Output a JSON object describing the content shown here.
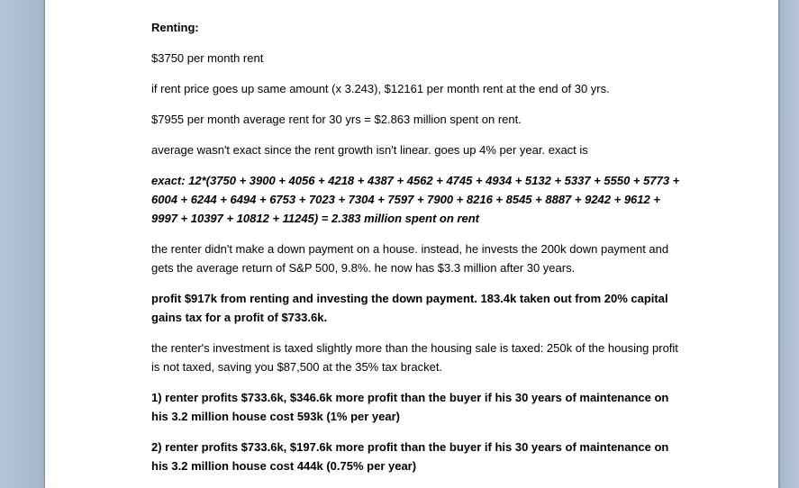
{
  "document": {
    "paragraphs": [
      {
        "style": "bold",
        "text": "Renting:"
      },
      {
        "style": "normal",
        "text": "$3750 per month rent"
      },
      {
        "style": "normal",
        "text": "if rent price goes up same amount (x 3.243), $12161 per month rent at the end of 30 yrs."
      },
      {
        "style": "normal",
        "text": "$7955 per month average rent for 30 yrs = $2.863 million spent on rent."
      },
      {
        "style": "normal",
        "text": "average wasn't exact since the rent growth isn't linear.  goes up 4% per year.  exact is"
      },
      {
        "style": "bold-italic",
        "text": "exact: 12*(3750 + 3900 + 4056 + 4218 + 4387 + 4562 + 4745 + 4934 + 5132 + 5337 + 5550 + 5773 + 6004 + 6244 + 6494 + 6753 + 7023 + 7304 + 7597 + 7900 + 8216 + 8545 + 8887 + 9242 + 9612 + 9997 + 10397 + 10812 + 11245) = 2.383 million spent on rent"
      },
      {
        "style": "normal",
        "text": "the renter didn't make a down payment on a house.  instead, he invests the 200k down payment and gets the average return of S&P 500, 9.8%. he now has $3.3 million after 30 years."
      },
      {
        "style": "bold",
        "text": "profit $917k from renting and investing the down payment.  183.4k taken out from 20% capital gains tax for a profit of $733.6k."
      },
      {
        "style": "normal",
        "text": "the renter's investment is taxed slightly more than the housing sale is taxed: 250k of the housing profit is not taxed, saving you $87,500 at the 35% tax bracket."
      },
      {
        "style": "bold",
        "text": "1) renter profits $733.6k, $346.6k more profit than the buyer if his 30 years of maintenance on his 3.2 million house cost 593k (1% per year)"
      },
      {
        "style": "bold",
        "text": "2) renter profits $733.6k, $197.6k more profit than the buyer if his 30 years of maintenance on his 3.2 million house cost 444k (0.75% per year)"
      }
    ]
  },
  "colors": {
    "app_background": "#a9b9cf",
    "page": "#ffffff",
    "text": "#000000"
  }
}
